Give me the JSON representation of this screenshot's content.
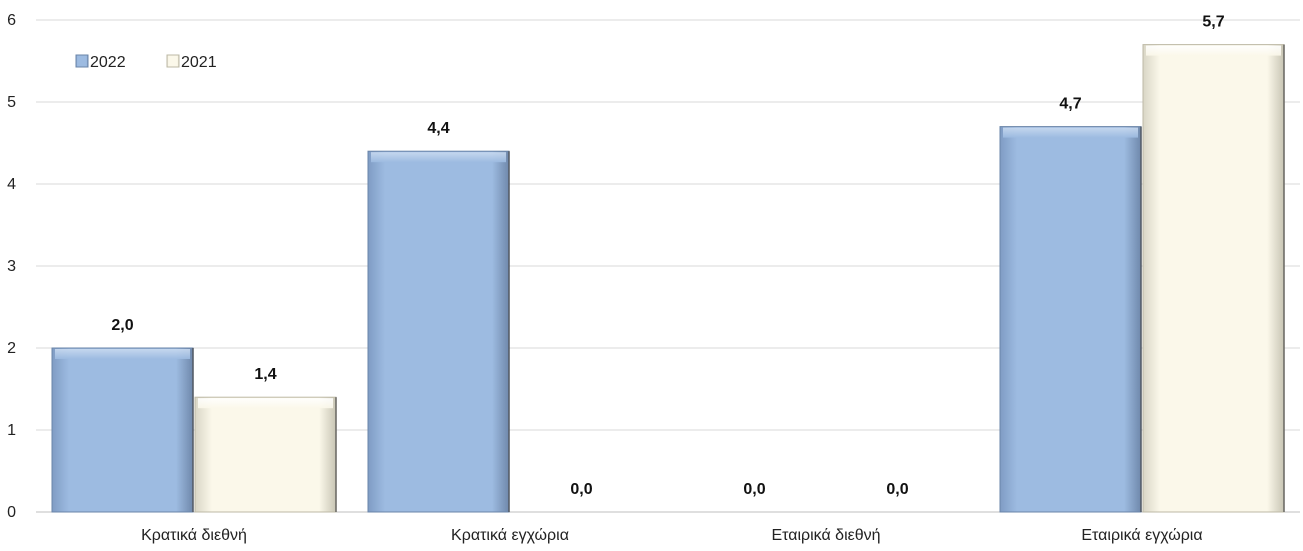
{
  "chart_data": {
    "type": "bar",
    "categories": [
      "Κρατικά διεθνή",
      "Κρατικά εγχώρια",
      "Εταιρικά διεθνή",
      "Εταιρικά εγχώρια"
    ],
    "series": [
      {
        "name": "2022",
        "values": [
          2.0,
          4.4,
          0.0,
          4.7
        ],
        "labels": [
          "2,0",
          "4,4",
          "0,0",
          "4,7"
        ],
        "color": "#9dbbe1"
      },
      {
        "name": "2021",
        "values": [
          1.4,
          0.0,
          0.0,
          5.7
        ],
        "labels": [
          "1,4",
          "0,0",
          "0,0",
          "5,7"
        ],
        "color": "#fbf8ea"
      }
    ],
    "y_ticks": [
      "0",
      "1",
      "2",
      "3",
      "4",
      "5",
      "6"
    ],
    "ylim": [
      0,
      6
    ],
    "grid": true,
    "legend_position": "top-left"
  }
}
